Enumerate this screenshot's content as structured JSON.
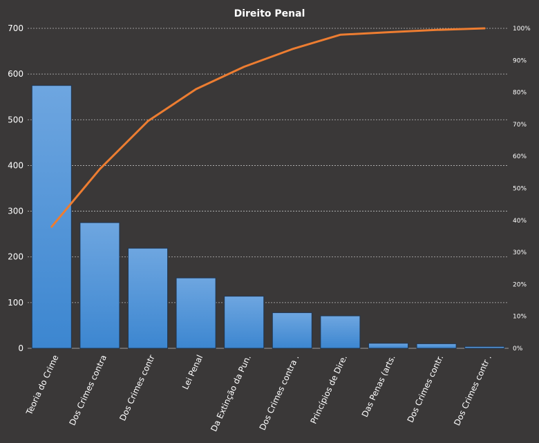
{
  "chart_data": {
    "type": "bar",
    "title": "Direito  Penal",
    "categories": [
      "Teoria do Crime",
      "Dos Crimes contra",
      "Dos Crimes contr",
      "Lei Penal",
      "Da Extinção da Pun.",
      "Dos Crimes contra .",
      "Princípios de Dire.",
      "Das Penas (arts.",
      "Dos Crimes contr.",
      "Dos Crimes contr ."
    ],
    "series": [
      {
        "type": "bar",
        "axis": "left",
        "values": [
          575,
          275,
          219,
          154,
          114,
          78,
          71,
          11,
          10,
          4
        ]
      },
      {
        "type": "line",
        "axis": "right",
        "values": [
          38,
          56,
          71,
          81,
          88,
          93.5,
          98,
          98.8,
          99.5,
          100
        ]
      }
    ],
    "left_axis": {
      "ylim": [
        0,
        700
      ],
      "ticks": [
        0,
        100,
        200,
        300,
        400,
        500,
        600,
        700
      ]
    },
    "right_axis": {
      "ylim": [
        0,
        100
      ],
      "ticks": [
        "0%",
        "10%",
        "20%",
        "30%",
        "40%",
        "50%",
        "60%",
        "70%",
        "80%",
        "90%",
        "100%"
      ]
    },
    "grid": true,
    "legend": "none",
    "colors": {
      "background": "#3a3838",
      "bar_fill_top": "#6ea6e0",
      "bar_fill_bottom": "#3c86d0",
      "bar_stroke": "#1f3550",
      "line": "#ed7d31",
      "grid": "#bfbfbf",
      "text": "#ffffff"
    }
  }
}
